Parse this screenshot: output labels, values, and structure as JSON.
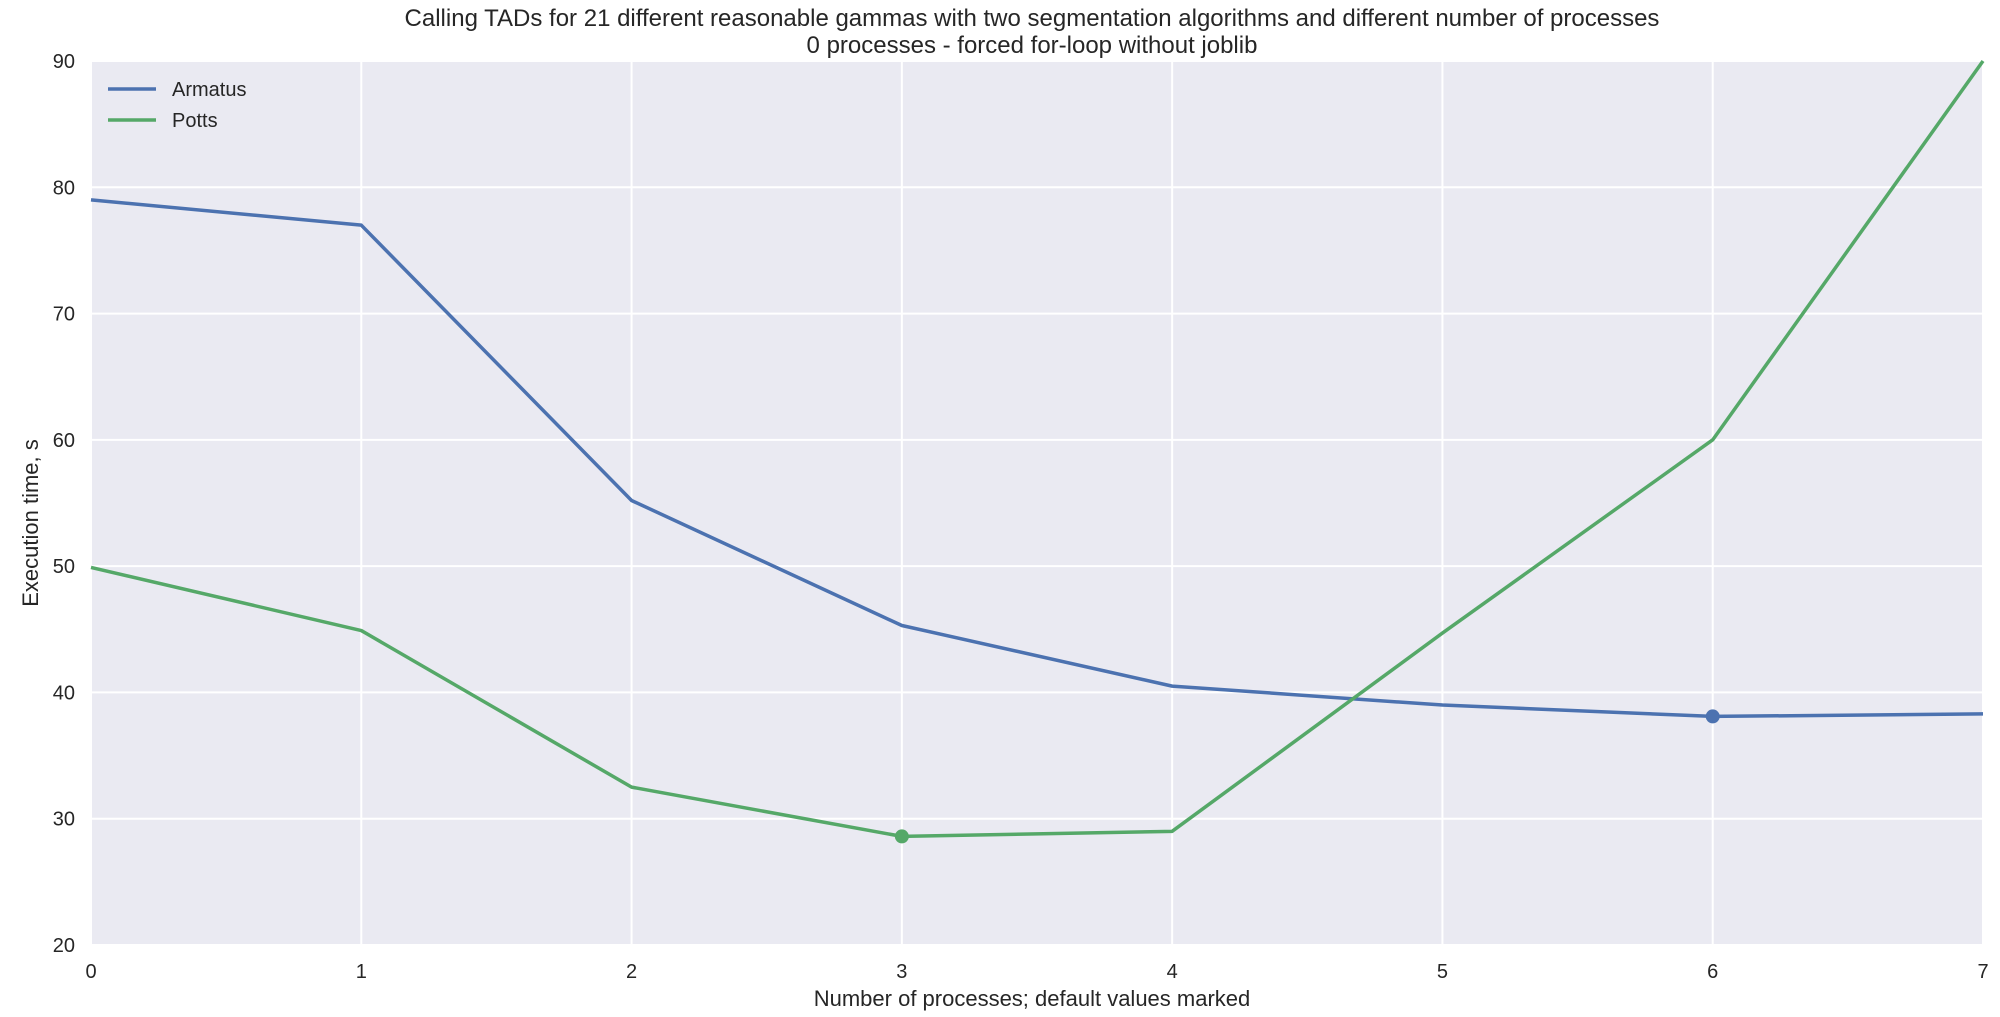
{
  "chart_data": {
    "type": "line",
    "title_lines": [
      "Calling TADs for 21 different reasonable gammas with two segmentation algorithms and different number of processes",
      "0 processes - forced for-loop without joblib"
    ],
    "xlabel": "Number of processes; default values marked",
    "ylabel": "Execution time, s",
    "x": [
      0,
      1,
      2,
      3,
      4,
      5,
      6,
      7
    ],
    "xlim": [
      0,
      7
    ],
    "ylim": [
      20,
      90
    ],
    "xticks": [
      0,
      1,
      2,
      3,
      4,
      5,
      6,
      7
    ],
    "yticks": [
      20,
      30,
      40,
      50,
      60,
      70,
      80,
      90
    ],
    "grid": true,
    "legend_position": "top-left",
    "series": [
      {
        "name": "Armatus",
        "color": "#4c72b0",
        "values": [
          79.0,
          77.0,
          55.2,
          45.3,
          40.5,
          39.0,
          38.1,
          38.3
        ],
        "marked_x": 6
      },
      {
        "name": "Potts",
        "color": "#55a868",
        "values": [
          49.9,
          44.9,
          32.5,
          28.6,
          29.0,
          44.7,
          60.0,
          90.0
        ],
        "marked_x": 3
      }
    ],
    "plot_background": "#eaeaf2",
    "grid_color": "#ffffff"
  }
}
